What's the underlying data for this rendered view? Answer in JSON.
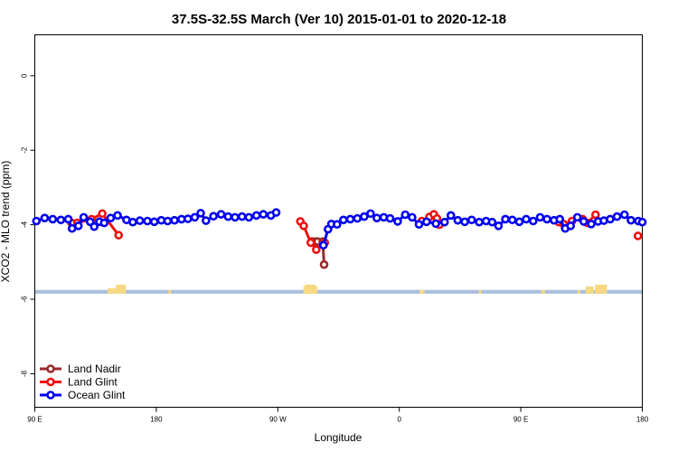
{
  "chart_data": {
    "type": "line",
    "title": "37.5S-32.5S March (Ver 10)   2015-01-01 to 2020-12-18",
    "xlabel": "Longitude",
    "ylabel": "XCO2 - MLO trend (ppm)",
    "x_ticks": [
      {
        "value": 90,
        "label": "90 E"
      },
      {
        "value": 180,
        "label": "180"
      },
      {
        "value": 270,
        "label": "90 W"
      },
      {
        "value": 360,
        "label": "0"
      },
      {
        "value": 450,
        "label": "90 E"
      },
      {
        "value": 540,
        "label": "180"
      }
    ],
    "y_ticks": [
      {
        "value": 0,
        "label": "0"
      },
      {
        "value": -2,
        "label": "-2"
      },
      {
        "value": -4,
        "label": "-4"
      },
      {
        "value": -6,
        "label": "-6"
      },
      {
        "value": -8,
        "label": "-8"
      }
    ],
    "xlim": [
      90,
      540
    ],
    "ylim": [
      -8.9,
      1.1
    ],
    "grid": false,
    "legend_position": "bottom-left",
    "background_map": {
      "ocean_color": "#a9bfdc",
      "land_color": "#f7d983",
      "y_range": [
        -5.85,
        -5.75
      ]
    },
    "series": [
      {
        "name": "Land Nadir",
        "color": "#9b2a2a",
        "points": [
          [
            295.2,
            -4.45
          ],
          [
            297.5,
            -4.45
          ],
          [
            299.5,
            -4.45
          ],
          [
            303.3,
            -4.45
          ],
          [
            304.3,
            -5.07
          ]
        ]
      },
      {
        "name": "Land Glint",
        "color": "#ee1111",
        "points": [
          [
            117.2,
            -3.95
          ],
          [
            121.5,
            -3.95
          ],
          [
            132.0,
            -3.85
          ],
          [
            140.0,
            -3.7
          ],
          [
            152.1,
            -4.28
          ],
          [
            286.7,
            -3.91
          ],
          [
            289.2,
            -4.03
          ],
          [
            294.4,
            -4.48
          ],
          [
            298.5,
            -4.67
          ],
          [
            304.8,
            -4.48
          ],
          [
            376.7,
            -3.9
          ],
          [
            382.3,
            -3.79
          ],
          [
            385.6,
            -3.72
          ],
          [
            387.9,
            -3.83
          ],
          [
            389.7,
            -4.0
          ],
          [
            478.2,
            -3.93
          ],
          [
            481.7,
            -3.98
          ],
          [
            487.9,
            -3.9
          ],
          [
            495.8,
            -3.85
          ],
          [
            499.3,
            -3.95
          ],
          [
            505.4,
            -3.73
          ],
          [
            536.8,
            -4.3
          ]
        ]
      },
      {
        "name": "Ocean Glint",
        "color": "#0000ee",
        "points": [
          [
            91.2,
            -3.9
          ],
          [
            97.3,
            -3.82
          ],
          [
            103.3,
            -3.85
          ],
          [
            109.3,
            -3.87
          ],
          [
            114.8,
            -3.85
          ],
          [
            117.6,
            -4.1
          ],
          [
            122.3,
            -4.03
          ],
          [
            126.2,
            -3.8
          ],
          [
            131.0,
            -3.92
          ],
          [
            134.0,
            -4.05
          ],
          [
            137.9,
            -3.92
          ],
          [
            141.4,
            -3.95
          ],
          [
            146.2,
            -3.82
          ],
          [
            151.3,
            -3.75
          ],
          [
            157.9,
            -3.87
          ],
          [
            162.6,
            -3.93
          ],
          [
            167.8,
            -3.89
          ],
          [
            173.4,
            -3.9
          ],
          [
            178.5,
            -3.92
          ],
          [
            183.7,
            -3.88
          ],
          [
            188.4,
            -3.9
          ],
          [
            193.5,
            -3.88
          ],
          [
            198.7,
            -3.85
          ],
          [
            203.4,
            -3.84
          ],
          [
            208.5,
            -3.8
          ],
          [
            212.9,
            -3.69
          ],
          [
            216.8,
            -3.89
          ],
          [
            222.4,
            -3.77
          ],
          [
            228.0,
            -3.72
          ],
          [
            233.2,
            -3.78
          ],
          [
            238.3,
            -3.8
          ],
          [
            243.5,
            -3.78
          ],
          [
            248.6,
            -3.8
          ],
          [
            254.2,
            -3.75
          ],
          [
            259.3,
            -3.72
          ],
          [
            264.9,
            -3.75
          ],
          [
            268.8,
            -3.67
          ],
          [
            303.8,
            -4.55
          ],
          [
            307.2,
            -4.12
          ],
          [
            309.7,
            -3.98
          ],
          [
            313.9,
            -3.99
          ],
          [
            318.6,
            -3.87
          ],
          [
            323.7,
            -3.85
          ],
          [
            328.9,
            -3.83
          ],
          [
            334.0,
            -3.78
          ],
          [
            338.7,
            -3.7
          ],
          [
            343.4,
            -3.82
          ],
          [
            348.5,
            -3.8
          ],
          [
            353.2,
            -3.83
          ],
          [
            358.8,
            -3.91
          ],
          [
            364.4,
            -3.73
          ],
          [
            369.5,
            -3.8
          ],
          [
            374.6,
            -3.99
          ],
          [
            380.2,
            -3.92
          ],
          [
            387.1,
            -3.97
          ],
          [
            393.5,
            -3.93
          ],
          [
            398.2,
            -3.75
          ],
          [
            403.3,
            -3.88
          ],
          [
            408.5,
            -3.92
          ],
          [
            413.6,
            -3.87
          ],
          [
            419.2,
            -3.93
          ],
          [
            424.3,
            -3.9
          ],
          [
            428.8,
            -3.93
          ],
          [
            433.5,
            -4.03
          ],
          [
            438.6,
            -3.85
          ],
          [
            443.7,
            -3.87
          ],
          [
            448.9,
            -3.92
          ],
          [
            454.0,
            -3.85
          ],
          [
            459.2,
            -3.9
          ],
          [
            464.3,
            -3.8
          ],
          [
            469.4,
            -3.85
          ],
          [
            474.6,
            -3.88
          ],
          [
            478.9,
            -3.85
          ],
          [
            482.9,
            -4.1
          ],
          [
            486.9,
            -4.03
          ],
          [
            491.9,
            -3.8
          ],
          [
            496.6,
            -3.91
          ],
          [
            502.2,
            -3.98
          ],
          [
            507.3,
            -3.91
          ],
          [
            511.5,
            -3.89
          ],
          [
            516.2,
            -3.85
          ],
          [
            521.3,
            -3.78
          ],
          [
            526.8,
            -3.73
          ],
          [
            531.6,
            -3.88
          ],
          [
            537.1,
            -3.9
          ],
          [
            540.0,
            -3.93
          ]
        ]
      }
    ]
  }
}
